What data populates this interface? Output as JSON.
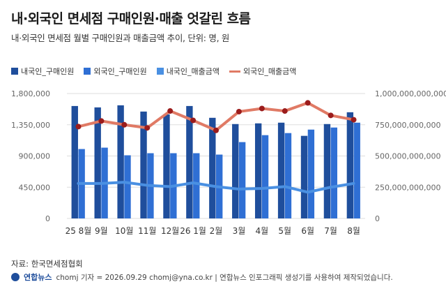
{
  "title": "내·외국인 면세점 구매인원·매출 엇갈린 흐름",
  "subtitle": "내·외국인 면세점 월별 구매인원과 매출금액 추이, 단위: 명, 원",
  "source": "자료: 한국면세점협회",
  "footer": {
    "logo": "연합뉴스",
    "credit": "chomj 기자 = 2026.09.29 chomj@yna.co.kr | 연합뉴스 인포그래픽 생성기를 사용하여 제작되었습니다."
  },
  "colors": {
    "domestic_people": "#1f4e9c",
    "foreign_people": "#2f6fd4",
    "domestic_sales": "#4a90e2",
    "foreign_sales": "#e07a65",
    "foreign_sales_marker": "#9b1c1c"
  },
  "chart_data": {
    "type": "bar",
    "categories": [
      "25 8월",
      "9월",
      "10월",
      "11월",
      "12월",
      "26 1월",
      "2월",
      "3월",
      "4월",
      "5월",
      "6월",
      "7월",
      "8월"
    ],
    "left_axis": {
      "ylim": [
        0,
        1800000
      ],
      "ticks": [
        "0",
        "450,000",
        "900,000",
        "1,350,000",
        "1,800,000"
      ]
    },
    "right_axis": {
      "ylim": [
        0,
        1000000000000
      ],
      "ticks": [
        "0",
        "250,000,000,000",
        "500,000,000,000",
        "750,000,000,000",
        "1,000,000,000,000"
      ]
    },
    "grid": true,
    "legend_position": "top",
    "series": [
      {
        "name": "내국인_구매인원",
        "kind": "bar",
        "axis": "left",
        "color": "#1f4e9c",
        "values": [
          1620000,
          1600000,
          1630000,
          1540000,
          1500000,
          1620000,
          1450000,
          1360000,
          1370000,
          1380000,
          1190000,
          1360000,
          1530000
        ]
      },
      {
        "name": "외국인_구매인원",
        "kind": "bar",
        "axis": "left",
        "color": "#2f6fd4",
        "values": [
          1000000,
          1020000,
          910000,
          940000,
          940000,
          940000,
          920000,
          1100000,
          1200000,
          1230000,
          1280000,
          1310000,
          1380000
        ]
      },
      {
        "name": "내국인_매출금액",
        "kind": "line",
        "axis": "right",
        "color": "#4a90e2",
        "values": [
          280000000000,
          280000000000,
          290000000000,
          265000000000,
          255000000000,
          285000000000,
          255000000000,
          235000000000,
          240000000000,
          255000000000,
          210000000000,
          250000000000,
          280000000000
        ]
      },
      {
        "name": "외국인_매출금액",
        "kind": "line",
        "axis": "right",
        "color": "#e07a65",
        "values": [
          735000000000,
          780000000000,
          750000000000,
          725000000000,
          860000000000,
          785000000000,
          705000000000,
          855000000000,
          880000000000,
          860000000000,
          925000000000,
          825000000000,
          790000000000
        ]
      }
    ]
  }
}
